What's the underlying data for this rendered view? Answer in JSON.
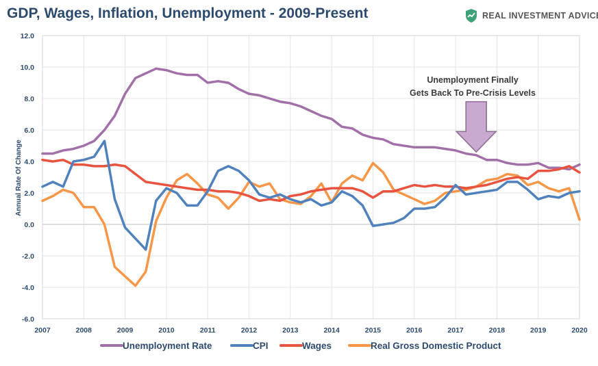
{
  "title": "GDP, Wages, Inflation, Unemployment - 2009-Present",
  "brand": {
    "text": "REAL INVESTMENT ADVICE",
    "icon": "shield-chart-icon",
    "color": "#3fa17a"
  },
  "chart_data": {
    "type": "line",
    "ylabel": "Annual Rate Of Change",
    "ylim": [
      -6,
      12
    ],
    "yticks": [
      "12.0",
      "10.0",
      "8.0",
      "6.0",
      "4.0",
      "2.0",
      "0.0",
      "-2.0",
      "-4.0",
      "-6.0"
    ],
    "yticks_values": [
      12,
      10,
      8,
      6,
      4,
      2,
      0,
      -2,
      -4,
      -6
    ],
    "xlim": [
      2007,
      2020
    ],
    "xticks": [
      "2007",
      "2008",
      "2009",
      "2010",
      "2011",
      "2012",
      "2013",
      "2014",
      "2015",
      "2016",
      "2017",
      "2018",
      "2019",
      "2020"
    ],
    "grid": true,
    "legend_position": "bottom",
    "annotation": {
      "lines": [
        "Unemployment Finally",
        "Gets Back To Pre-Crisis Levels"
      ],
      "x": 2017.5,
      "arrow_top": 7.8,
      "arrow_bottom": 4.6,
      "color": "#c9a9cf"
    },
    "series": [
      {
        "name": "Unemployment Rate",
        "color": "#a270a8",
        "x": [
          2007,
          2007.25,
          2007.5,
          2007.75,
          2008,
          2008.25,
          2008.5,
          2008.75,
          2009,
          2009.25,
          2009.5,
          2009.75,
          2010,
          2010.25,
          2010.5,
          2010.75,
          2011,
          2011.25,
          2011.5,
          2011.75,
          2012,
          2012.25,
          2012.5,
          2012.75,
          2013,
          2013.25,
          2013.5,
          2013.75,
          2014,
          2014.25,
          2014.5,
          2014.75,
          2015,
          2015.25,
          2015.5,
          2015.75,
          2016,
          2016.25,
          2016.5,
          2016.75,
          2017,
          2017.25,
          2017.5,
          2017.75,
          2018,
          2018.25,
          2018.5,
          2018.75,
          2019,
          2019.25,
          2019.5,
          2019.75,
          2020
        ],
        "values": [
          4.5,
          4.5,
          4.7,
          4.8,
          5.0,
          5.3,
          6.0,
          6.9,
          8.3,
          9.3,
          9.6,
          9.9,
          9.8,
          9.6,
          9.5,
          9.5,
          9.0,
          9.1,
          9.0,
          8.6,
          8.3,
          8.2,
          8.0,
          7.8,
          7.7,
          7.5,
          7.2,
          6.9,
          6.7,
          6.2,
          6.1,
          5.7,
          5.5,
          5.4,
          5.1,
          5.0,
          4.9,
          4.9,
          4.9,
          4.8,
          4.7,
          4.5,
          4.4,
          4.1,
          4.1,
          3.9,
          3.8,
          3.8,
          3.9,
          3.6,
          3.6,
          3.5,
          3.8
        ]
      },
      {
        "name": "CPI",
        "color": "#4f81bd",
        "x": [
          2007,
          2007.25,
          2007.5,
          2007.75,
          2008,
          2008.25,
          2008.5,
          2008.75,
          2009,
          2009.25,
          2009.5,
          2009.75,
          2010,
          2010.25,
          2010.5,
          2010.75,
          2011,
          2011.25,
          2011.5,
          2011.75,
          2012,
          2012.25,
          2012.5,
          2012.75,
          2013,
          2013.25,
          2013.5,
          2013.75,
          2014,
          2014.25,
          2014.5,
          2014.75,
          2015,
          2015.25,
          2015.5,
          2015.75,
          2016,
          2016.25,
          2016.5,
          2016.75,
          2017,
          2017.25,
          2017.5,
          2017.75,
          2018,
          2018.25,
          2018.5,
          2018.75,
          2019,
          2019.25,
          2019.5,
          2019.75,
          2020
        ],
        "values": [
          2.4,
          2.7,
          2.4,
          4.0,
          4.1,
          4.3,
          5.3,
          1.6,
          -0.2,
          -0.9,
          -1.6,
          1.5,
          2.3,
          2.0,
          1.2,
          1.2,
          2.1,
          3.4,
          3.7,
          3.4,
          2.8,
          1.9,
          1.7,
          1.9,
          1.6,
          1.4,
          1.6,
          1.2,
          1.4,
          2.1,
          1.8,
          1.2,
          -0.1,
          0.0,
          0.1,
          0.4,
          1.0,
          1.0,
          1.1,
          1.7,
          2.5,
          1.9,
          2.0,
          2.1,
          2.2,
          2.7,
          2.7,
          2.2,
          1.6,
          1.8,
          1.7,
          2.0,
          2.1
        ]
      },
      {
        "name": "Wages",
        "color": "#e8533f",
        "x": [
          2007,
          2007.25,
          2007.5,
          2007.75,
          2008,
          2008.25,
          2008.5,
          2008.75,
          2009,
          2009.25,
          2009.5,
          2009.75,
          2010,
          2010.25,
          2010.5,
          2010.75,
          2011,
          2011.25,
          2011.5,
          2011.75,
          2012,
          2012.25,
          2012.5,
          2012.75,
          2013,
          2013.25,
          2013.5,
          2013.75,
          2014,
          2014.25,
          2014.5,
          2014.75,
          2015,
          2015.25,
          2015.5,
          2015.75,
          2016,
          2016.25,
          2016.5,
          2016.75,
          2017,
          2017.25,
          2017.5,
          2017.75,
          2018,
          2018.25,
          2018.5,
          2018.75,
          2019,
          2019.25,
          2019.5,
          2019.75,
          2020
        ],
        "values": [
          4.1,
          4.0,
          4.1,
          3.8,
          3.8,
          3.7,
          3.7,
          3.8,
          3.7,
          3.2,
          2.7,
          2.6,
          2.5,
          2.4,
          2.3,
          2.2,
          2.2,
          2.1,
          2.1,
          2.0,
          1.8,
          1.5,
          1.6,
          1.5,
          1.8,
          1.9,
          2.1,
          2.2,
          2.3,
          2.3,
          2.3,
          2.1,
          1.7,
          2.1,
          2.1,
          2.3,
          2.5,
          2.4,
          2.5,
          2.4,
          2.4,
          2.3,
          2.4,
          2.5,
          2.7,
          2.9,
          3.0,
          2.9,
          3.4,
          3.4,
          3.5,
          3.7,
          3.3
        ]
      },
      {
        "name": "Real Gross Domestic Product",
        "color": "#f79646",
        "x": [
          2007,
          2007.25,
          2007.5,
          2007.75,
          2008,
          2008.25,
          2008.5,
          2008.75,
          2009,
          2009.25,
          2009.5,
          2009.75,
          2010,
          2010.25,
          2010.5,
          2010.75,
          2011,
          2011.25,
          2011.5,
          2011.75,
          2012,
          2012.25,
          2012.5,
          2012.75,
          2013,
          2013.25,
          2013.5,
          2013.75,
          2014,
          2014.25,
          2014.5,
          2014.75,
          2015,
          2015.25,
          2015.5,
          2015.75,
          2016,
          2016.25,
          2016.5,
          2016.75,
          2017,
          2017.25,
          2017.5,
          2017.75,
          2018,
          2018.25,
          2018.5,
          2018.75,
          2019,
          2019.25,
          2019.5,
          2019.75,
          2020
        ],
        "values": [
          1.5,
          1.8,
          2.2,
          2.0,
          1.1,
          1.1,
          0.0,
          -2.7,
          -3.3,
          -3.9,
          -3.0,
          0.2,
          1.7,
          2.8,
          3.2,
          2.6,
          1.9,
          1.7,
          1.0,
          1.7,
          2.7,
          2.4,
          2.6,
          1.6,
          1.4,
          1.3,
          1.8,
          2.6,
          1.4,
          2.6,
          3.1,
          2.8,
          3.9,
          3.3,
          2.2,
          1.9,
          1.6,
          1.3,
          1.5,
          2.0,
          2.1,
          2.2,
          2.4,
          2.8,
          2.9,
          3.2,
          3.1,
          2.5,
          2.7,
          2.3,
          2.1,
          2.3,
          0.3
        ]
      }
    ]
  }
}
